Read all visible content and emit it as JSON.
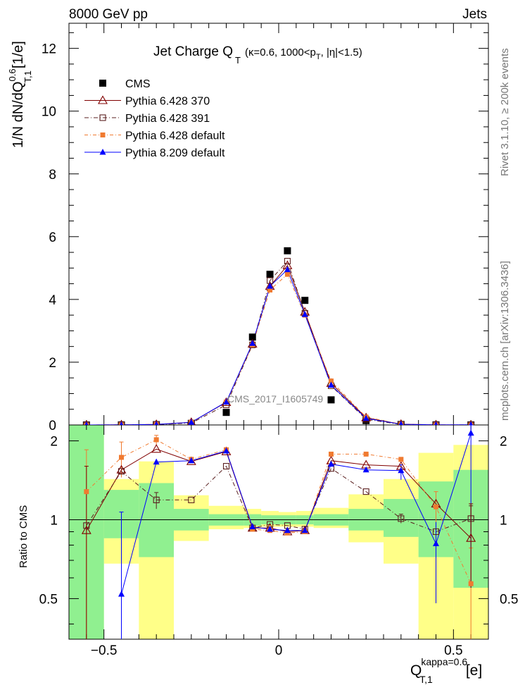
{
  "header": {
    "left": "8000 GeV pp",
    "right": "Jets"
  },
  "side_labels": {
    "rivet": "Rivet 3.1.10, ≥ 200k events",
    "mcplots": "mcplots.cern.ch [arXiv:1306.3436]"
  },
  "watermark": "CMS_2017_I1605749",
  "colors": {
    "cms": "#000000",
    "p370": "#800000",
    "p391": "#5a1f1f",
    "p6def": "#f07a30",
    "p8def": "#0000ff",
    "green": "#90f090",
    "yellow": "#ffff88"
  },
  "chart_data": [
    {
      "type": "line",
      "title": {
        "main": "Jet Charge Q",
        "sub": "T",
        "extra": "(κ=0.6, 1000<p",
        "extra_sub": "T",
        "extra_end": ", |η|<1.5)"
      },
      "ylabel": "1/N dN/dQ",
      "ylabel_sup": "0.6",
      "ylabel_sub": "T,1",
      "ylabel_unit": "[1/e]",
      "xlim": [
        -0.6,
        0.6
      ],
      "ylim": [
        0,
        12.8
      ],
      "yticks": [
        0,
        2,
        4,
        6,
        8,
        10,
        12
      ],
      "ytick_labels": [
        "0",
        "2",
        "4",
        "6",
        "8",
        "10",
        "12"
      ],
      "x": [
        -0.55,
        -0.45,
        -0.35,
        -0.25,
        -0.15,
        -0.075,
        -0.025,
        0.025,
        0.075,
        0.15,
        0.25,
        0.35,
        0.45,
        0.55
      ],
      "legend": [
        "CMS",
        "Pythia 6.428 370",
        "Pythia 6.428 391",
        "Pythia 6.428 default",
        "Pythia 8.209 default"
      ],
      "series": [
        {
          "name": "CMS",
          "values": [
            0.0,
            0.003,
            0.01,
            0.05,
            0.4,
            2.8,
            4.8,
            5.55,
            3.97,
            0.8,
            0.14,
            0.015,
            0.004,
            0.002
          ]
        },
        {
          "name": "Pythia 6.428 370",
          "values": [
            0.0,
            0.005,
            0.018,
            0.085,
            0.72,
            2.58,
            4.42,
            5.08,
            3.6,
            1.33,
            0.23,
            0.024,
            0.0045,
            0.0017
          ]
        },
        {
          "name": "Pythia 6.428 391",
          "values": [
            0.0,
            0.005,
            0.012,
            0.06,
            0.64,
            2.55,
            4.6,
            5.22,
            3.56,
            1.25,
            0.18,
            0.015,
            0.0036,
            0.002
          ]
        },
        {
          "name": "Pythia 6.428 default",
          "values": [
            0.0,
            0.005,
            0.02,
            0.085,
            0.73,
            2.55,
            4.3,
            4.8,
            3.5,
            1.4,
            0.25,
            0.025,
            0.0045,
            0.0012
          ]
        },
        {
          "name": "Pythia 8.209 default",
          "values": [
            0.0,
            0.0015,
            0.017,
            0.083,
            0.73,
            2.6,
            4.42,
            4.95,
            3.52,
            1.27,
            0.21,
            0.023,
            0.0033,
            0.0043
          ]
        }
      ]
    },
    {
      "type": "line",
      "ylabel": "Ratio to CMS",
      "xlabel": "Q",
      "xlabel_sup": "kappa=0.6",
      "xlabel_sub": "T,1",
      "xlabel_unit": "[e]",
      "xlim": [
        -0.6,
        0.6
      ],
      "ylim": [
        0.35,
        2.3
      ],
      "xticks": [
        -0.5,
        0,
        0.5
      ],
      "xtick_labels": [
        "−0.5",
        "0",
        "0.5"
      ],
      "yticks": [
        0.5,
        1,
        2
      ],
      "ytick_labels": [
        "0.5",
        "1",
        "2"
      ],
      "bands": [
        {
          "xmin": -0.6,
          "xmax": -0.5,
          "green_lo": 0.2,
          "green_hi": 2.3,
          "yellow_lo": 0.2,
          "yellow_hi": 2.3
        },
        {
          "xmin": -0.5,
          "xmax": -0.4,
          "green_lo": 0.85,
          "green_hi": 1.3,
          "yellow_lo": 0.68,
          "yellow_hi": 1.43
        },
        {
          "xmin": -0.4,
          "xmax": -0.3,
          "green_lo": 0.72,
          "green_hi": 1.38,
          "yellow_lo": 0.2,
          "yellow_hi": 1.67
        },
        {
          "xmin": -0.3,
          "xmax": -0.2,
          "green_lo": 0.91,
          "green_hi": 1.1,
          "yellow_lo": 0.83,
          "yellow_hi": 1.24
        },
        {
          "xmin": -0.2,
          "xmax": -0.1,
          "green_lo": 0.95,
          "green_hi": 1.05,
          "yellow_lo": 0.92,
          "yellow_hi": 1.13
        },
        {
          "xmin": -0.1,
          "xmax": -0.05,
          "green_lo": 0.95,
          "green_hi": 1.05,
          "yellow_lo": 0.93,
          "yellow_hi": 1.1
        },
        {
          "xmin": -0.05,
          "xmax": 0.0,
          "green_lo": 0.96,
          "green_hi": 1.04,
          "yellow_lo": 0.94,
          "yellow_hi": 1.08
        },
        {
          "xmin": 0.0,
          "xmax": 0.05,
          "green_lo": 0.96,
          "green_hi": 1.04,
          "yellow_lo": 0.94,
          "yellow_hi": 1.07
        },
        {
          "xmin": 0.05,
          "xmax": 0.1,
          "green_lo": 0.96,
          "green_hi": 1.04,
          "yellow_lo": 0.94,
          "yellow_hi": 1.08
        },
        {
          "xmin": 0.1,
          "xmax": 0.2,
          "green_lo": 0.95,
          "green_hi": 1.05,
          "yellow_lo": 0.93,
          "yellow_hi": 1.11
        },
        {
          "xmin": 0.2,
          "xmax": 0.3,
          "green_lo": 0.91,
          "green_hi": 1.1,
          "yellow_lo": 0.82,
          "yellow_hi": 1.25
        },
        {
          "xmin": 0.3,
          "xmax": 0.4,
          "green_lo": 0.86,
          "green_hi": 1.2,
          "yellow_lo": 0.68,
          "yellow_hi": 1.43
        },
        {
          "xmin": 0.4,
          "xmax": 0.5,
          "green_lo": 0.72,
          "green_hi": 1.4,
          "yellow_lo": 0.2,
          "yellow_hi": 1.8
        },
        {
          "xmin": 0.5,
          "xmax": 0.6,
          "green_lo": 0.55,
          "green_hi": 1.55,
          "yellow_lo": 0.2,
          "yellow_hi": 1.93
        }
      ],
      "x": [
        -0.55,
        -0.45,
        -0.35,
        -0.25,
        -0.15,
        -0.075,
        -0.025,
        0.025,
        0.075,
        0.15,
        0.25,
        0.35,
        0.45,
        0.55
      ],
      "series": [
        {
          "name": "Pythia 6.428 370",
          "values": [
            0.91,
            1.55,
            1.86,
            1.67,
            1.82,
            0.93,
            0.93,
            0.9,
            0.91,
            1.68,
            1.62,
            1.6,
            1.15,
            0.85
          ]
        },
        {
          "name": "Pythia 6.428 391",
          "values": [
            0.95,
            1.53,
            1.19,
            1.19,
            1.6,
            0.93,
            0.96,
            0.95,
            0.92,
            1.57,
            1.28,
            1.01,
            0.9,
            1.01
          ]
        },
        {
          "name": "Pythia 6.428 default",
          "values": [
            1.28,
            1.73,
            2.02,
            1.7,
            1.85,
            0.92,
            0.91,
            0.89,
            0.9,
            1.78,
            1.78,
            1.7,
            1.12,
            0.57
          ]
        },
        {
          "name": "Pythia 8.209 default",
          "values": [
            null,
            0.52,
            1.66,
            1.68,
            1.83,
            0.94,
            0.92,
            0.91,
            0.91,
            1.63,
            1.55,
            1.54,
            0.81,
            2.14
          ]
        }
      ],
      "error_bars": [
        {
          "series": "Pythia 8.209 default",
          "x": -0.45,
          "lo": 0.35,
          "hi": 1.07
        },
        {
          "series": "Pythia 8.209 default",
          "x": 0.45,
          "lo": 0.48,
          "hi": 1.12
        },
        {
          "series": "Pythia 8.209 default",
          "x": 0.55,
          "lo": 0.55,
          "hi": 2.3
        },
        {
          "series": "Pythia 8.209 default",
          "x": 0.35,
          "lo": 1.42,
          "hi": 1.62
        },
        {
          "series": "Pythia 6.428 default",
          "x": -0.55,
          "lo": 0.35,
          "hi": 1.85
        },
        {
          "series": "Pythia 6.428 default",
          "x": -0.45,
          "lo": 1.45,
          "hi": 1.98
        },
        {
          "series": "Pythia 6.428 default",
          "x": -0.35,
          "lo": 1.93,
          "hi": 2.1
        },
        {
          "series": "Pythia 6.428 default",
          "x": 0.45,
          "lo": 0.98,
          "hi": 1.28
        },
        {
          "series": "Pythia 6.428 default",
          "x": 0.55,
          "lo": 0.35,
          "hi": 0.78
        },
        {
          "series": "Pythia 6.428 391",
          "x": -0.35,
          "lo": 1.1,
          "hi": 1.27
        },
        {
          "series": "Pythia 6.428 391",
          "x": 0.35,
          "lo": 0.97,
          "hi": 1.05
        },
        {
          "series": "Pythia 6.428 391",
          "x": 0.55,
          "lo": 0.9,
          "hi": 1.13
        },
        {
          "series": "Pythia 6.428 370",
          "x": -0.55,
          "lo": 0.35,
          "hi": 1.6
        },
        {
          "series": "Pythia 6.428 370",
          "x": 0.55,
          "lo": 0.55,
          "hi": 1.15
        }
      ]
    }
  ]
}
